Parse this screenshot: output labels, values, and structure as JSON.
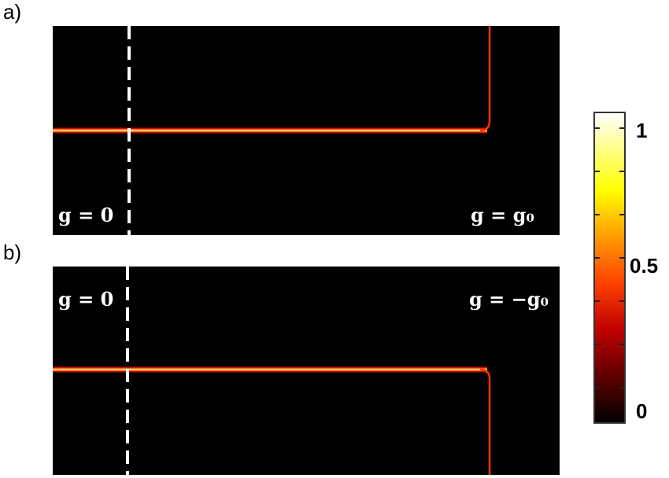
{
  "chart_data": {
    "type": "heatmap",
    "panels": [
      {
        "label": "a)",
        "left_annotation": "g = 0",
        "right_annotation": "g = g₀",
        "corner_direction": "up"
      },
      {
        "label": "b)",
        "left_annotation": "g = 0",
        "right_annotation": "g = −g₀",
        "corner_direction": "down"
      }
    ],
    "colorbar": {
      "colormap": "hot",
      "range": [
        0,
        1
      ],
      "tick_labels": [
        "1",
        "0.5",
        "0"
      ],
      "colors": [
        "#000000",
        "#ff0000",
        "#ff8c00",
        "#ffff00",
        "#ffffff"
      ]
    },
    "background_color": "#000000",
    "dashed_line_color": "#ffffff"
  }
}
